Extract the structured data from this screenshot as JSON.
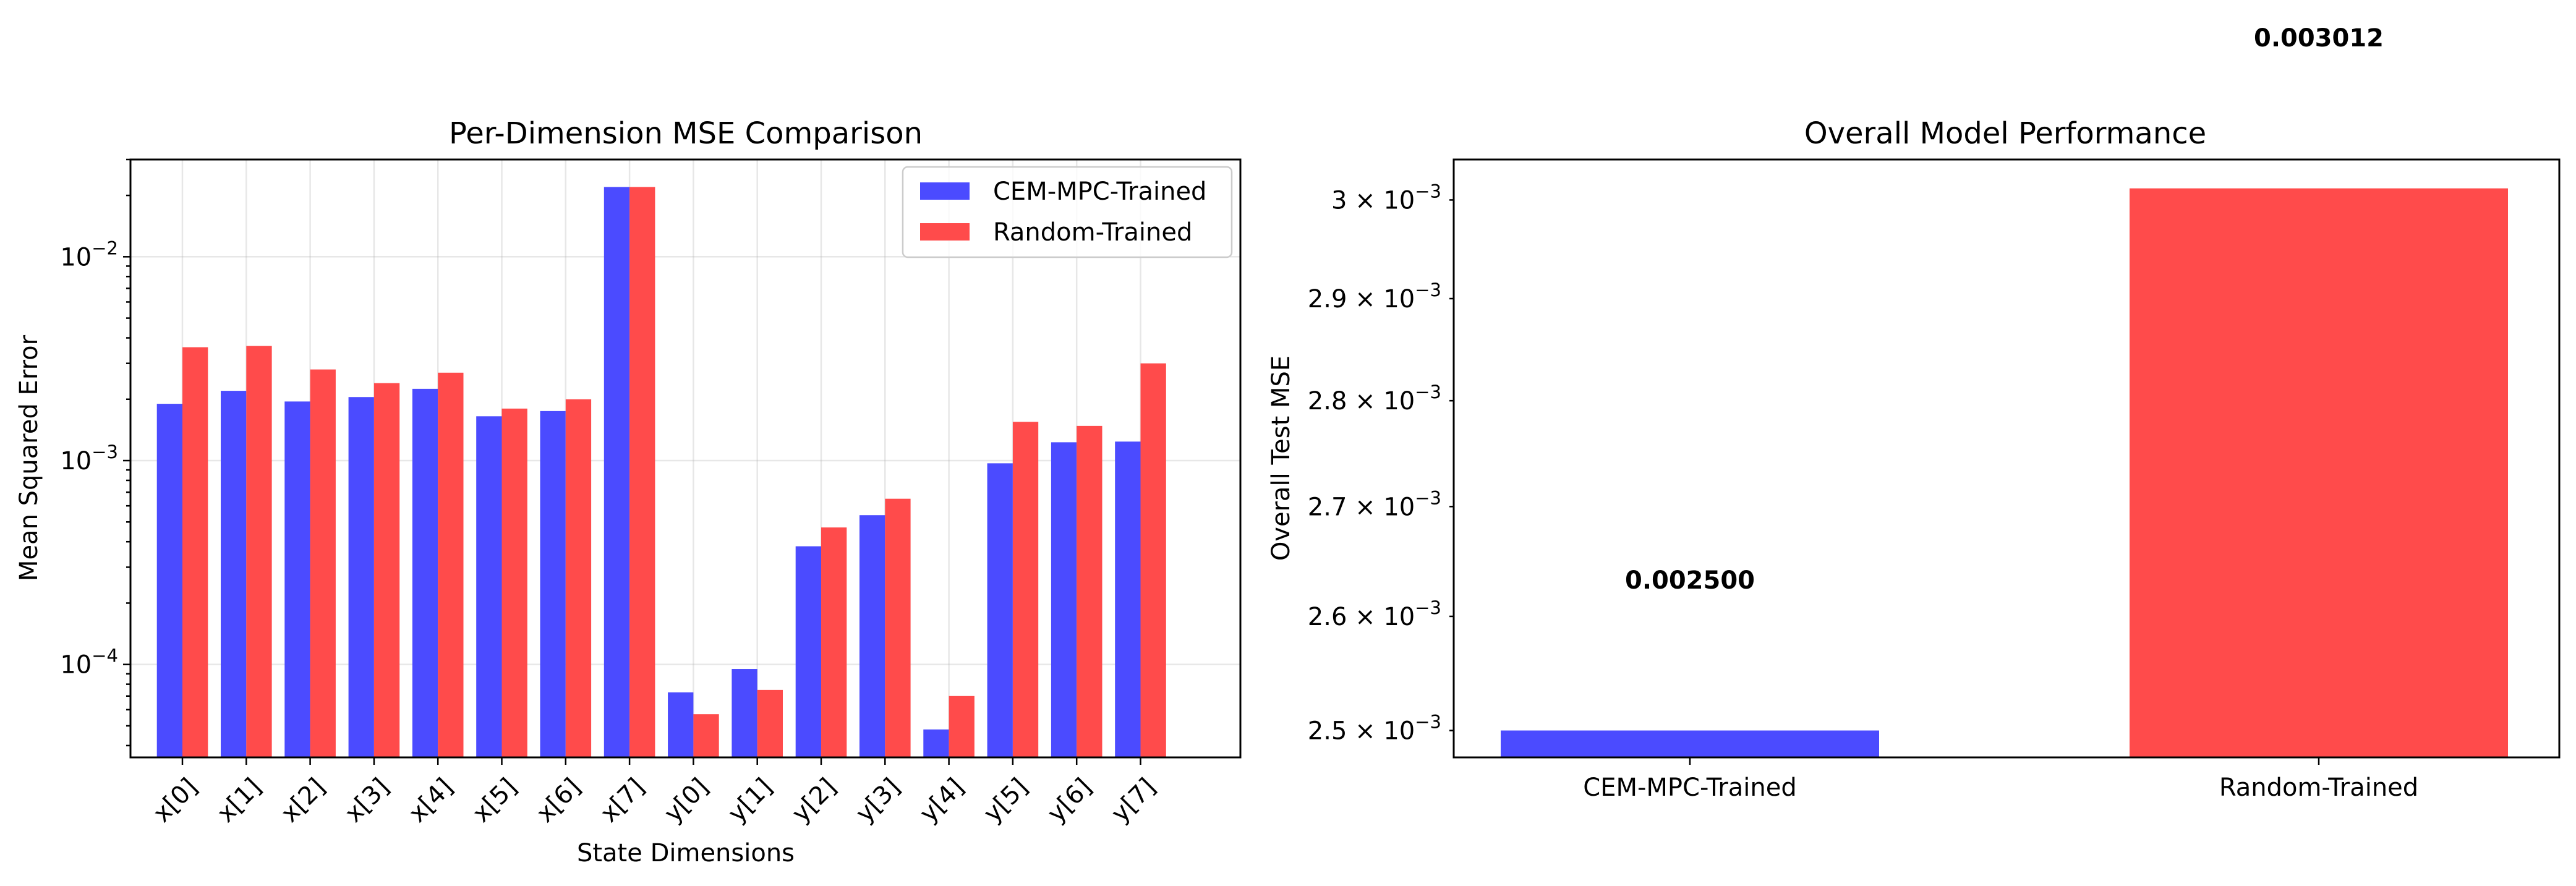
{
  "chart_data": [
    {
      "type": "bar",
      "title": "Per-Dimension MSE Comparison",
      "xlabel": "State Dimensions",
      "ylabel": "Mean Squared Error",
      "yscale": "log",
      "ylim": [
        3.5e-05,
        0.03
      ],
      "grid": true,
      "legend_position": "top-right",
      "categories": [
        "x[0]",
        "x[1]",
        "x[2]",
        "x[3]",
        "x[4]",
        "x[5]",
        "x[6]",
        "x[7]",
        "y[0]",
        "y[1]",
        "y[2]",
        "y[3]",
        "y[4]",
        "y[5]",
        "y[6]",
        "y[7]"
      ],
      "series": [
        {
          "name": "CEM-MPC-Trained",
          "color": "#4b4bff",
          "values": [
            0.0019,
            0.0022,
            0.00195,
            0.00205,
            0.00225,
            0.00165,
            0.00175,
            0.022,
            7.3e-05,
            9.5e-05,
            0.00038,
            0.00054,
            4.8e-05,
            0.00097,
            0.00123,
            0.00124
          ]
        },
        {
          "name": "Random-Trained",
          "color": "#ff4b4b",
          "values": [
            0.0036,
            0.00365,
            0.0028,
            0.0024,
            0.0027,
            0.0018,
            0.002,
            0.022,
            5.7e-05,
            7.5e-05,
            0.00047,
            0.00065,
            7e-05,
            0.00155,
            0.00148,
            0.003
          ]
        }
      ],
      "yticks": [
        {
          "value": 0.0001,
          "base": "10",
          "exp": "−4"
        },
        {
          "value": 0.001,
          "base": "10",
          "exp": "−3"
        },
        {
          "value": 0.01,
          "base": "10",
          "exp": "−2"
        }
      ]
    },
    {
      "type": "bar",
      "title": "Overall Model Performance",
      "xlabel": "",
      "ylabel": "Overall Test MSE",
      "yscale": "log",
      "ylim": [
        0.002477,
        0.003042
      ],
      "grid": false,
      "categories": [
        "CEM-MPC-Trained",
        "Random-Trained"
      ],
      "colors": [
        "#4b4bff",
        "#ff4b4b"
      ],
      "values": [
        0.0025,
        0.003012
      ],
      "value_labels": [
        "0.002500",
        "0.003012"
      ],
      "yticks": [
        {
          "value": 0.0025,
          "mant": "2.5",
          "base": "10",
          "exp": "−3"
        },
        {
          "value": 0.0026,
          "mant": "2.6",
          "base": "10",
          "exp": "−3"
        },
        {
          "value": 0.0027,
          "mant": "2.7",
          "base": "10",
          "exp": "−3"
        },
        {
          "value": 0.0028,
          "mant": "2.8",
          "base": "10",
          "exp": "−3"
        },
        {
          "value": 0.0029,
          "mant": "2.9",
          "base": "10",
          "exp": "−3"
        },
        {
          "value": 0.003,
          "mant": "3",
          "base": "10",
          "exp": "−3"
        }
      ]
    }
  ]
}
